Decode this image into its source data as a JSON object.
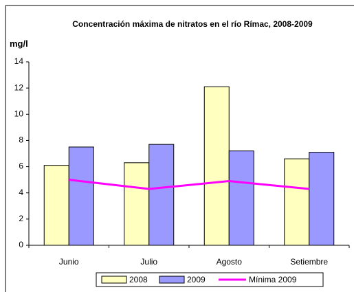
{
  "chart_data": {
    "type": "bar",
    "title": "Concentración máxima de nitratos en el río Rímac, 2008-2009",
    "y_label": "mg/l",
    "categories": [
      "Junio",
      "Julio",
      "Agosto",
      "Setiembre"
    ],
    "series": [
      {
        "name": "2008",
        "color": "#ffffc0",
        "values": [
          6.1,
          6.3,
          12.1,
          6.6
        ]
      },
      {
        "name": "2009",
        "color": "#9999ff",
        "values": [
          7.5,
          7.7,
          7.2,
          7.1
        ]
      },
      {
        "name": "Mínima 2009",
        "color": "#ff00ff",
        "type": "line",
        "values": [
          5.0,
          4.3,
          4.9,
          4.3
        ]
      }
    ],
    "ylim": [
      0,
      14
    ],
    "yticks": [
      0,
      2,
      4,
      6,
      8,
      10,
      12,
      14
    ],
    "grid": false,
    "legend": "bottom"
  }
}
